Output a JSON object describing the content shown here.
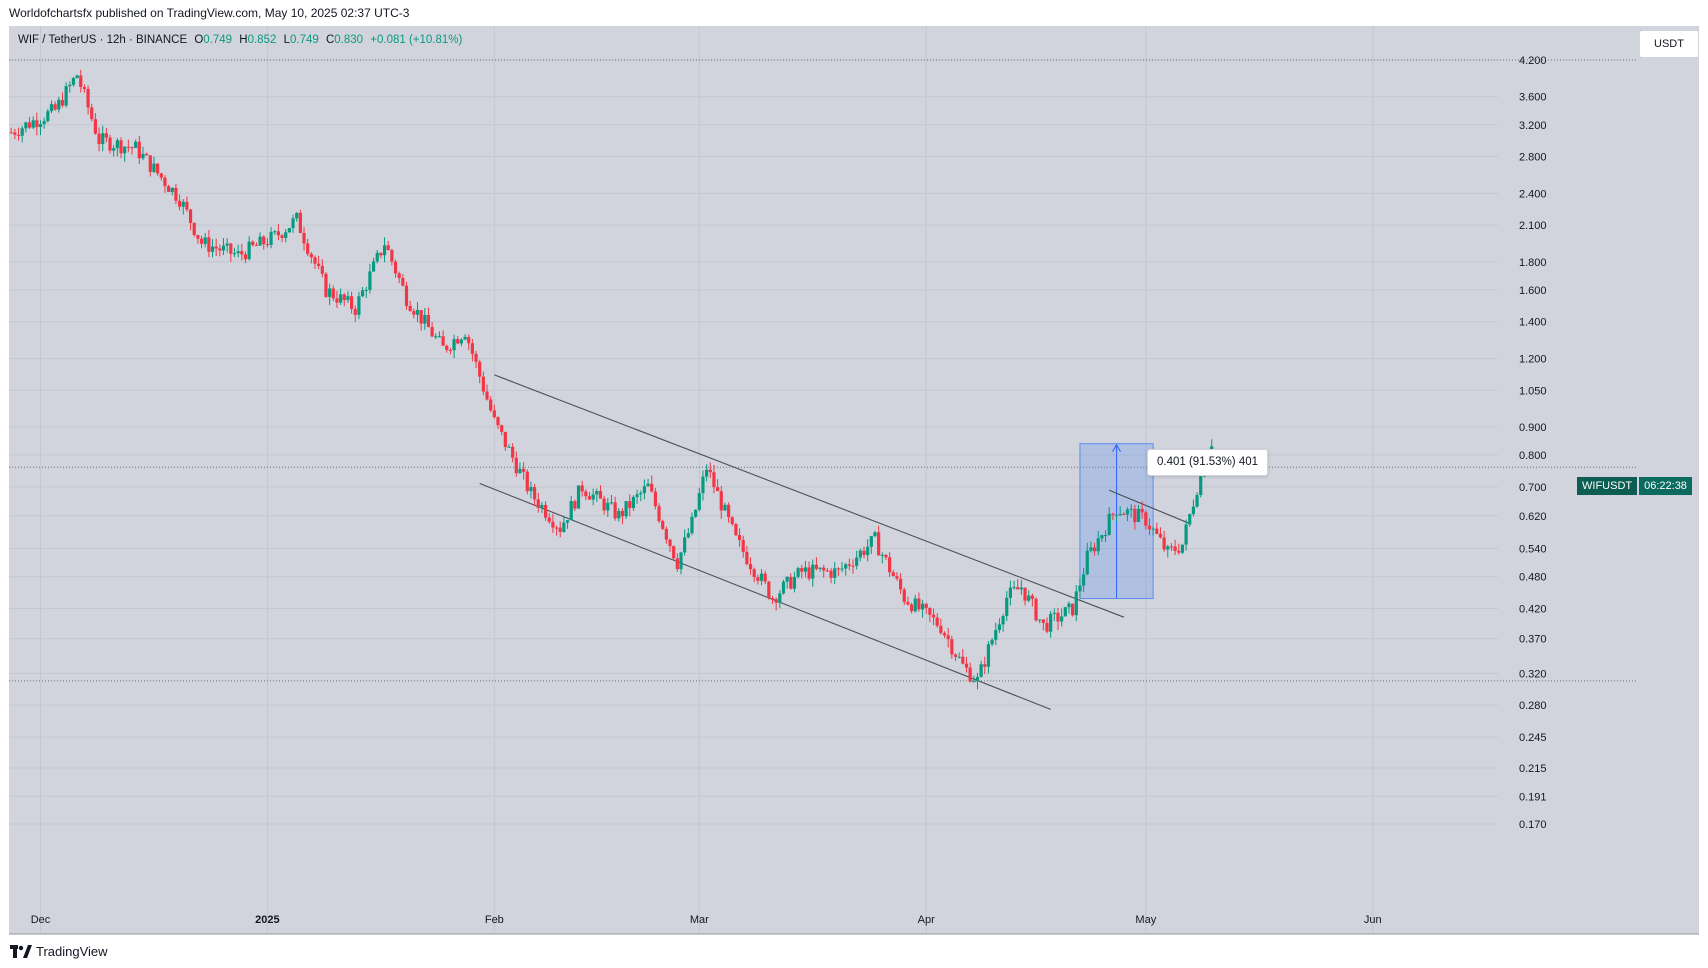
{
  "header": {
    "published": "Worldofchartsfx published on TradingView.com, May 10, 2025 02:37 UTC-3"
  },
  "legend": {
    "symbol": "WIF / TetherUS · 12h · BINANCE",
    "open_label": "O",
    "open": "0.749",
    "high_label": "H",
    "high": "0.852",
    "low_label": "L",
    "low": "0.749",
    "close_label": "C",
    "close": "0.830",
    "change": "+0.081 (+10.81%)"
  },
  "currency_button": "USDT",
  "price_tag": {
    "symbol": "WIFUSDT",
    "countdown": "06:22:38"
  },
  "measure_label": "0.401 (91.53%) 401",
  "footer": {
    "brand": "TradingView"
  },
  "colors": {
    "up": "#089981",
    "down": "#f23645",
    "plot_bg": "#d1d4dc",
    "measure_fill": "#5b8def",
    "trend_line": "#4a4e58"
  },
  "chart_data": {
    "type": "candlestick",
    "y_scale": "log",
    "y_ticks": [
      "4.200",
      "3.600",
      "3.200",
      "2.800",
      "2.400",
      "2.100",
      "1.800",
      "1.600",
      "1.400",
      "1.200",
      "1.050",
      "0.900",
      "0.800",
      "0.700",
      "0.620",
      "0.540",
      "0.480",
      "0.420",
      "0.370",
      "0.320",
      "0.280",
      "0.245",
      "0.215",
      "0.191",
      "0.170"
    ],
    "x_ticks": [
      "Dec",
      "2025",
      "Feb",
      "Mar",
      "Apr",
      "May",
      "Jun"
    ],
    "ylim": [
      0.16,
      4.4
    ],
    "reference_lines": [
      4.2,
      0.31,
      0.76
    ],
    "last_close": 0.83,
    "close_path": [
      {
        "date": "2024-11-27",
        "close": 3.1
      },
      {
        "date": "2024-12-03",
        "close": 3.4
      },
      {
        "date": "2024-12-06",
        "close": 3.95
      },
      {
        "date": "2024-12-09",
        "close": 3.0
      },
      {
        "date": "2024-12-14",
        "close": 2.9
      },
      {
        "date": "2024-12-20",
        "close": 2.35
      },
      {
        "date": "2024-12-23",
        "close": 1.95
      },
      {
        "date": "2024-12-28",
        "close": 1.85
      },
      {
        "date": "2025-01-02",
        "close": 2.0
      },
      {
        "date": "2025-01-05",
        "close": 2.15
      },
      {
        "date": "2025-01-09",
        "close": 1.6
      },
      {
        "date": "2025-01-13",
        "close": 1.48
      },
      {
        "date": "2025-01-17",
        "close": 1.95
      },
      {
        "date": "2025-01-20",
        "close": 1.55
      },
      {
        "date": "2025-01-25",
        "close": 1.25
      },
      {
        "date": "2025-01-28",
        "close": 1.35
      },
      {
        "date": "2025-02-01",
        "close": 0.92
      },
      {
        "date": "2025-02-06",
        "close": 0.68
      },
      {
        "date": "2025-02-10",
        "close": 0.59
      },
      {
        "date": "2025-02-13",
        "close": 0.7
      },
      {
        "date": "2025-02-18",
        "close": 0.62
      },
      {
        "date": "2025-02-22",
        "close": 0.7
      },
      {
        "date": "2025-02-26",
        "close": 0.51
      },
      {
        "date": "2025-02-28",
        "close": 0.6
      },
      {
        "date": "2025-03-02",
        "close": 0.76
      },
      {
        "date": "2025-03-06",
        "close": 0.56
      },
      {
        "date": "2025-03-11",
        "close": 0.44
      },
      {
        "date": "2025-03-15",
        "close": 0.49
      },
      {
        "date": "2025-03-20",
        "close": 0.49
      },
      {
        "date": "2025-03-25",
        "close": 0.56
      },
      {
        "date": "2025-03-29",
        "close": 0.44
      },
      {
        "date": "2025-04-03",
        "close": 0.39
      },
      {
        "date": "2025-04-06",
        "close": 0.33
      },
      {
        "date": "2025-04-08",
        "close": 0.31
      },
      {
        "date": "2025-04-12",
        "close": 0.44
      },
      {
        "date": "2025-04-14",
        "close": 0.46
      },
      {
        "date": "2025-04-17",
        "close": 0.39
      },
      {
        "date": "2025-04-21",
        "close": 0.42
      },
      {
        "date": "2025-04-23",
        "close": 0.52
      },
      {
        "date": "2025-04-27",
        "close": 0.64
      },
      {
        "date": "2025-05-01",
        "close": 0.61
      },
      {
        "date": "2025-05-04",
        "close": 0.53
      },
      {
        "date": "2025-05-06",
        "close": 0.55
      },
      {
        "date": "2025-05-08",
        "close": 0.7
      },
      {
        "date": "2025-05-10",
        "close": 0.83
      }
    ],
    "trendlines": [
      {
        "from": {
          "date": "2025-02-01",
          "price": 1.12
        },
        "to": {
          "date": "2025-04-28",
          "price": 0.405
        }
      },
      {
        "from": {
          "date": "2025-01-30",
          "price": 0.71
        },
        "to": {
          "date": "2025-04-18",
          "price": 0.275
        }
      },
      {
        "from": {
          "date": "2025-04-26",
          "price": 0.69
        },
        "to": {
          "date": "2025-05-07",
          "price": 0.6
        }
      }
    ],
    "measure": {
      "from_date": "2025-04-22",
      "to_date": "2025-05-02",
      "from_price": 0.438,
      "to_price": 0.839
    }
  }
}
